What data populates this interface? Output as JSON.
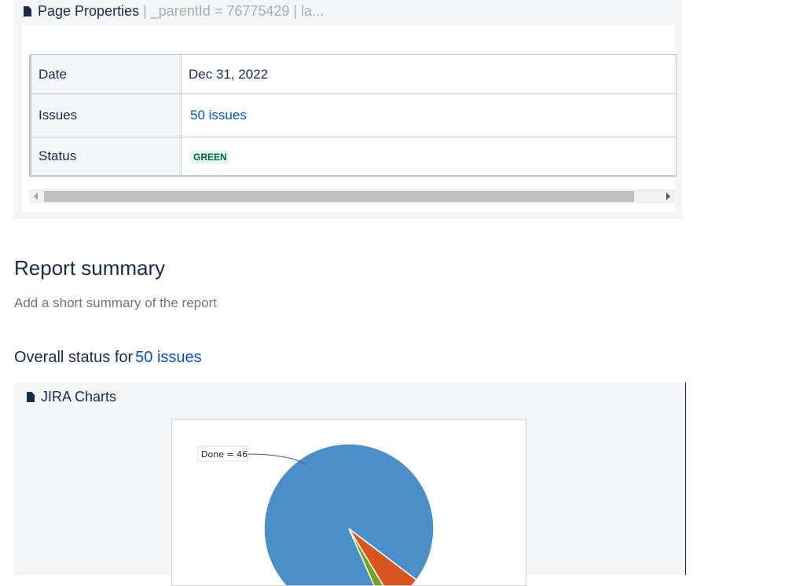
{
  "page_properties": {
    "title": "Page Properties",
    "meta": " | _parentId = 76775429 | la...",
    "rows": [
      {
        "label": "Date",
        "value": "Dec 31, 2022"
      },
      {
        "label": "Issues",
        "value": "50 issues"
      },
      {
        "label": "Status",
        "value": "GREEN"
      }
    ]
  },
  "report": {
    "title": "Report summary",
    "description": "Add a short summary of the report",
    "overall_prefix": "Overall status for",
    "overall_link": "50 issues"
  },
  "jira_charts": {
    "title": "JIRA Charts"
  },
  "chart_data": {
    "type": "pie",
    "total": 50,
    "slices": [
      {
        "label": "Done = 46",
        "value": 46,
        "color": "#4a8fc8"
      },
      {
        "value": 3,
        "color": "#d9541e"
      },
      {
        "value": 1,
        "color": "#7aa31c"
      }
    ]
  }
}
